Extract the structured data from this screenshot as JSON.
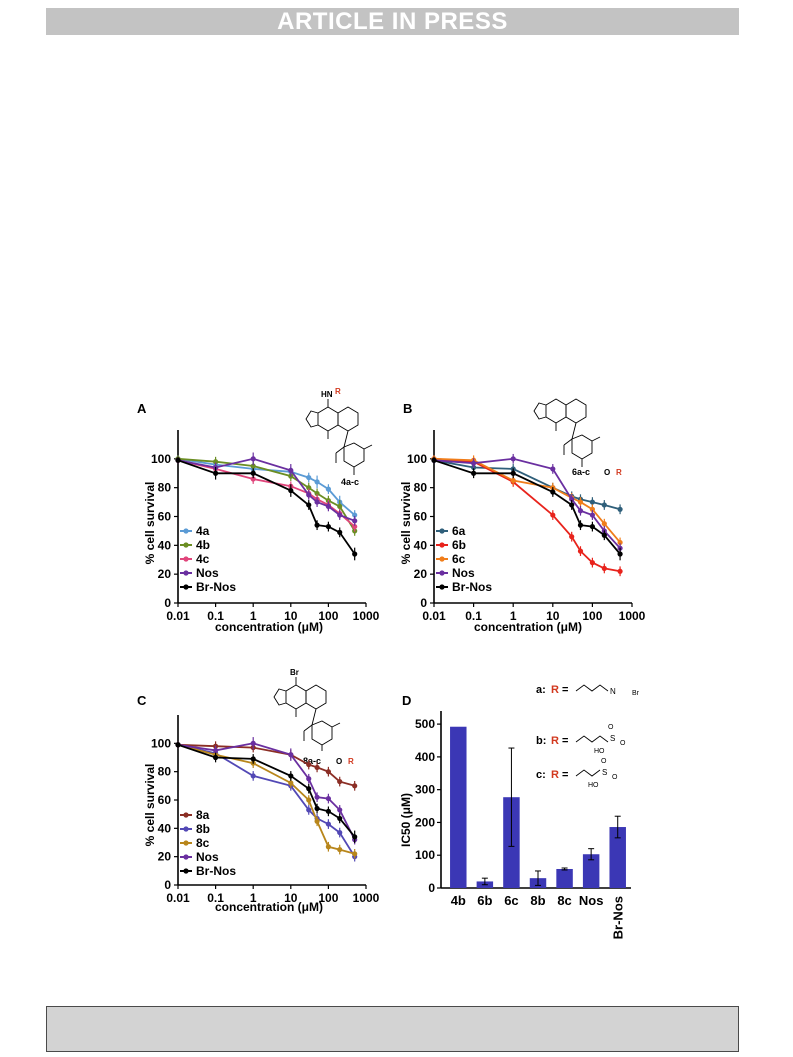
{
  "header": {
    "banner_text": "ARTICLE IN PRESS"
  },
  "figure": {
    "panels": [
      {
        "id": "A",
        "letter": "A",
        "ylabel": "% cell survival",
        "xlabel_prefix": "concentration (",
        "xlabel_unit": "μM",
        "xlabel_suffix": ")",
        "xticks": [
          "0.01",
          "0.1",
          "1",
          "10",
          "100",
          "1000"
        ],
        "yticks": [
          "0",
          "20",
          "40",
          "60",
          "80",
          "100"
        ],
        "structure": {
          "top_sub": "HN",
          "top_r": "R",
          "compound": "4a-c"
        }
      },
      {
        "id": "B",
        "letter": "B",
        "ylabel": "% cell survival",
        "xlabel_prefix": "concentration (",
        "xlabel_unit": "μM",
        "xlabel_suffix": ")",
        "xticks": [
          "0.01",
          "0.1",
          "1",
          "10",
          "100",
          "1000"
        ],
        "yticks": [
          "0",
          "20",
          "40",
          "60",
          "80",
          "100"
        ],
        "structure": {
          "compound": "6a-c",
          "ring_sub": "O",
          "ring_r": "R"
        }
      },
      {
        "id": "C",
        "letter": "C",
        "ylabel": "% cell survival",
        "xlabel_prefix": "concentration (",
        "xlabel_unit": "μM",
        "xlabel_suffix": ")",
        "xticks": [
          "0.01",
          "0.1",
          "1",
          "10",
          "100",
          "1000"
        ],
        "yticks": [
          "0",
          "20",
          "40",
          "60",
          "80",
          "100"
        ],
        "structure": {
          "top_sub": "Br",
          "compound": "8a-c",
          "ring_sub": "O",
          "ring_r": "R"
        }
      },
      {
        "id": "D",
        "letter": "D",
        "ylabel_prefix": "IC50 (",
        "ylabel_unit": "μM",
        "ylabel_suffix": ")",
        "yticks": [
          "0",
          "100",
          "200",
          "300",
          "400",
          "500"
        ],
        "legend": {
          "a": "a:",
          "b": "b:",
          "c": "c:",
          "r": "R",
          "eq": "=",
          "br": "Br",
          "n": "N",
          "ho": "HO",
          "s": "S",
          "o": "O"
        }
      }
    ]
  },
  "chart_data": [
    {
      "type": "line",
      "panel": "A",
      "xlabel": "concentration (μM)",
      "ylabel": "% cell survival",
      "xscale": "log",
      "xlim": [
        0.01,
        1000
      ],
      "ylim": [
        0,
        120
      ],
      "legend_position": "bottom-left",
      "series": [
        {
          "name": "4a",
          "color": "#5b9bd5",
          "x": [
            0.01,
            0.1,
            1,
            10,
            30,
            50,
            100,
            200,
            500
          ],
          "y": [
            100,
            96,
            93,
            91,
            87,
            84,
            79,
            70,
            61
          ],
          "err": [
            1,
            2,
            3,
            2,
            2,
            3,
            2,
            3,
            2
          ]
        },
        {
          "name": "4b",
          "color": "#6b8e23",
          "x": [
            0.01,
            0.1,
            1,
            10,
            30,
            50,
            100,
            200,
            500
          ],
          "y": [
            100,
            98,
            95,
            88,
            80,
            76,
            71,
            67,
            50
          ],
          "err": [
            1,
            2,
            2,
            2,
            2,
            2,
            2,
            3,
            2
          ]
        },
        {
          "name": "4c",
          "color": "#e0457b",
          "x": [
            0.01,
            0.1,
            1,
            10,
            30,
            50,
            100,
            200,
            500
          ],
          "y": [
            99,
            93,
            86,
            81,
            76,
            72,
            68,
            62,
            53
          ],
          "err": [
            1,
            2,
            2,
            2,
            2,
            2,
            2,
            2,
            2
          ]
        },
        {
          "name": "Nos",
          "color": "#6a2fa0",
          "x": [
            0.01,
            0.1,
            1,
            10,
            30,
            50,
            100,
            200,
            500
          ],
          "y": [
            99,
            94,
            100,
            92,
            75,
            70,
            67,
            61,
            57
          ],
          "err": [
            1,
            2,
            3,
            3,
            2,
            2,
            2,
            2,
            2
          ]
        },
        {
          "name": "Br-Nos",
          "color": "#000000",
          "x": [
            0.01,
            0.1,
            1,
            10,
            30,
            50,
            100,
            200,
            500
          ],
          "y": [
            99,
            90,
            90,
            78,
            68,
            54,
            53,
            49,
            34
          ],
          "err": [
            1,
            3,
            2,
            3,
            2,
            2,
            2,
            2,
            3
          ]
        }
      ]
    },
    {
      "type": "line",
      "panel": "B",
      "xlabel": "concentration (μM)",
      "ylabel": "% cell survival",
      "xscale": "log",
      "xlim": [
        0.01,
        1000
      ],
      "ylim": [
        0,
        120
      ],
      "legend_position": "bottom-left",
      "series": [
        {
          "name": "6a",
          "color": "#2f5f7a",
          "x": [
            0.01,
            0.1,
            1,
            10,
            30,
            50,
            100,
            200,
            500
          ],
          "y": [
            99,
            94,
            93,
            80,
            74,
            72,
            70,
            68,
            65
          ],
          "err": [
            1,
            2,
            2,
            2,
            2,
            2,
            2,
            2,
            2
          ]
        },
        {
          "name": "6b",
          "color": "#e8231c",
          "x": [
            0.01,
            0.1,
            1,
            10,
            30,
            50,
            100,
            200,
            500
          ],
          "y": [
            100,
            98,
            84,
            61,
            46,
            36,
            28,
            24,
            22
          ],
          "err": [
            1,
            2,
            2,
            2,
            2,
            2,
            2,
            2,
            2
          ]
        },
        {
          "name": "6c",
          "color": "#f07d1a",
          "x": [
            0.01,
            0.1,
            1,
            10,
            30,
            50,
            100,
            200,
            500
          ],
          "y": [
            100,
            99,
            85,
            80,
            73,
            70,
            65,
            55,
            42
          ],
          "err": [
            1,
            2,
            2,
            2,
            2,
            2,
            2,
            2,
            2
          ]
        },
        {
          "name": "Nos",
          "color": "#6a2fa0",
          "x": [
            0.01,
            0.1,
            1,
            10,
            30,
            50,
            100,
            200,
            500
          ],
          "y": [
            99,
            97,
            100,
            93,
            72,
            64,
            61,
            50,
            38
          ],
          "err": [
            1,
            2,
            2,
            2,
            2,
            2,
            2,
            2,
            2
          ]
        },
        {
          "name": "Br-Nos",
          "color": "#000000",
          "x": [
            0.01,
            0.1,
            1,
            10,
            30,
            50,
            100,
            200,
            500
          ],
          "y": [
            99,
            90,
            90,
            77,
            68,
            54,
            53,
            47,
            34
          ],
          "err": [
            1,
            2,
            2,
            2,
            2,
            2,
            2,
            2,
            3
          ]
        }
      ]
    },
    {
      "type": "line",
      "panel": "C",
      "xlabel": "concentration (μM)",
      "ylabel": "% cell survival",
      "xscale": "log",
      "xlim": [
        0.01,
        1000
      ],
      "ylim": [
        0,
        120
      ],
      "legend_position": "bottom-left",
      "series": [
        {
          "name": "8a",
          "color": "#8b2e25",
          "x": [
            0.01,
            0.1,
            1,
            10,
            30,
            50,
            100,
            200,
            500
          ],
          "y": [
            99,
            98,
            97,
            92,
            85,
            83,
            80,
            73,
            70
          ],
          "err": [
            1,
            2,
            2,
            2,
            2,
            2,
            2,
            2,
            2
          ]
        },
        {
          "name": "8b",
          "color": "#5248b5",
          "x": [
            0.01,
            0.1,
            1,
            10,
            30,
            50,
            100,
            200,
            500
          ],
          "y": [
            99,
            93,
            77,
            70,
            53,
            47,
            43,
            37,
            20
          ],
          "err": [
            1,
            2,
            2,
            2,
            2,
            2,
            2,
            2,
            2
          ]
        },
        {
          "name": "8c",
          "color": "#b8861b",
          "x": [
            0.01,
            0.1,
            1,
            10,
            30,
            50,
            100,
            200,
            500
          ],
          "y": [
            99,
            92,
            86,
            72,
            60,
            45,
            27,
            25,
            22
          ],
          "err": [
            1,
            2,
            2,
            2,
            2,
            2,
            2,
            2,
            2
          ]
        },
        {
          "name": "Nos",
          "color": "#6a2fa0",
          "x": [
            0.01,
            0.1,
            1,
            10,
            30,
            50,
            100,
            200,
            500
          ],
          "y": [
            99,
            95,
            100,
            92,
            75,
            62,
            61,
            53,
            32
          ],
          "err": [
            1,
            2,
            3,
            3,
            2,
            2,
            2,
            2,
            2
          ]
        },
        {
          "name": "Br-Nos",
          "color": "#000000",
          "x": [
            0.01,
            0.1,
            1,
            10,
            30,
            50,
            100,
            200,
            500
          ],
          "y": [
            99,
            90,
            89,
            77,
            68,
            54,
            52,
            47,
            34
          ],
          "err": [
            1,
            2,
            2,
            2,
            2,
            2,
            2,
            2,
            3
          ]
        }
      ]
    },
    {
      "type": "bar",
      "panel": "D",
      "ylabel": "IC50 (μM)",
      "ylim": [
        0,
        540
      ],
      "color": "#3b37b5",
      "categories": [
        "4b",
        "6b",
        "6c",
        "8b",
        "8c",
        "Nos",
        "Br-Nos"
      ],
      "values": [
        492,
        20,
        277,
        30,
        58,
        103,
        186
      ],
      "errors": [
        0,
        10,
        150,
        22,
        3,
        17,
        33
      ]
    }
  ]
}
